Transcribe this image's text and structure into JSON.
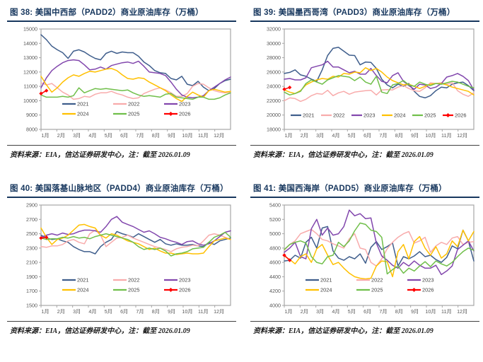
{
  "palette": {
    "2021": "#3F5E8C",
    "2022": "#F8ABAB",
    "2023": "#8247AD",
    "2024": "#FFC000",
    "2025": "#70BF4A",
    "2026": "#FF0000"
  },
  "axis_colors": {
    "frame": "#A6A6A6",
    "tick_text": "#595959",
    "legend_text": "#404040"
  },
  "title_color": "#17375E",
  "chart_data": [
    {
      "id": "figure-38",
      "type": "line",
      "title": "图 38:  美国中西部（PADD2）商业原油库存（万桶）",
      "source": "资料来源：EIA，信达证券研发中心，注：截至 2026.01.09",
      "ylim": [
        8000,
        15000
      ],
      "ytick": 1000,
      "legend_rows": 2,
      "x_labels": [
        "1月",
        "2月",
        "3月",
        "4月",
        "5月",
        "6月",
        "7月",
        "8月",
        "9月",
        "10月",
        "11月",
        "12月"
      ],
      "series": [
        {
          "name": "2021",
          "markers": false,
          "values": [
            14600,
            14250,
            13800,
            13550,
            13350,
            12950,
            13450,
            13550,
            13400,
            13150,
            12950,
            12850,
            13300,
            13450,
            13300,
            13400,
            13350,
            13350,
            13100,
            12700,
            12450,
            12100,
            11950,
            11900,
            11550,
            11450,
            11700,
            11150,
            11050,
            11350,
            10950,
            10700,
            10850,
            11200,
            11400,
            11500
          ]
        },
        {
          "name": "2022",
          "markers": false,
          "values": [
            11250,
            11100,
            11200,
            10900,
            10600,
            10400,
            10100,
            10150,
            10300,
            10250,
            10450,
            10550,
            10550,
            10650,
            10500,
            10400,
            10250,
            10150,
            10200,
            10500,
            10650,
            10800,
            10900,
            10750,
            10550,
            10300,
            10300,
            10500,
            11000,
            11200,
            11150,
            10900,
            10700,
            10600,
            10550,
            10600
          ]
        },
        {
          "name": "2023",
          "markers": false,
          "values": [
            10900,
            11600,
            12100,
            12400,
            12650,
            12800,
            12850,
            12800,
            12500,
            12150,
            12200,
            12350,
            12200,
            12450,
            12550,
            12650,
            12700,
            12600,
            12750,
            12400,
            12000,
            11950,
            11900,
            11750,
            11300,
            10800,
            10400,
            10250,
            10200,
            10250,
            10350,
            10700,
            10950,
            11200,
            11450,
            11650
          ]
        },
        {
          "name": "2024",
          "markers": false,
          "values": [
            11700,
            11100,
            10600,
            10900,
            11300,
            11600,
            11800,
            11700,
            11900,
            12050,
            12000,
            12100,
            12200,
            12250,
            12100,
            11800,
            11550,
            11500,
            11600,
            11550,
            11300,
            11100,
            10900,
            10700,
            10400,
            10150,
            9950,
            10300,
            10600,
            10400,
            10250,
            10700,
            10800,
            10700,
            10600,
            10650
          ]
        },
        {
          "name": "2025",
          "markers": false,
          "values": [
            10400,
            10250,
            10250,
            10250,
            10300,
            10250,
            10350,
            10900,
            10550,
            10700,
            10850,
            10800,
            10850,
            10800,
            10750,
            10700,
            10750,
            10550,
            10400,
            10300,
            10350,
            10300,
            10250,
            10450,
            10500,
            10250,
            10200,
            10150,
            10100,
            10250,
            10250,
            10100,
            10100,
            10200,
            10400,
            10550
          ]
        },
        {
          "name": "2026",
          "markers": true,
          "values": [
            10500,
            10700
          ]
        }
      ]
    },
    {
      "id": "figure-39",
      "type": "line",
      "title": "图 39:  美国墨西哥湾（PADD3）商业原油库存（万桶）",
      "source": "资料来源：EIA，信达证券研发中心，注：截至 2026.01.09",
      "ylim": [
        18000,
        32000
      ],
      "ytick": 2000,
      "legend_rows": 1,
      "x_labels": [
        "1月",
        "2月",
        "3月",
        "4月",
        "5月",
        "6月",
        "7月",
        "8月",
        "9月",
        "10月",
        "11月",
        "12月"
      ],
      "series": [
        {
          "name": "2021",
          "markers": false,
          "values": [
            25800,
            25950,
            26300,
            25600,
            25400,
            25000,
            24700,
            26300,
            28300,
            29300,
            29450,
            28900,
            28350,
            28300,
            27000,
            27400,
            27350,
            26500,
            25000,
            24200,
            23800,
            24300,
            24000,
            24400,
            23300,
            22600,
            22400,
            22700,
            23400,
            23900,
            23800,
            24300,
            24500,
            24600,
            24100,
            23400
          ]
        },
        {
          "name": "2022",
          "markers": false,
          "values": [
            22000,
            22400,
            22300,
            21900,
            22200,
            22700,
            23000,
            22900,
            23450,
            22700,
            23100,
            23300,
            22900,
            23200,
            23300,
            23400,
            23450,
            22800,
            23500,
            23550,
            23500,
            23900,
            24100,
            23700,
            23400,
            23300,
            23800,
            24500,
            24400,
            24500,
            24300,
            24500,
            23400,
            22900,
            22600,
            23100
          ]
        },
        {
          "name": "2023",
          "markers": false,
          "values": [
            25000,
            25100,
            24900,
            24900,
            25200,
            26600,
            26800,
            27000,
            27500,
            26700,
            26700,
            26300,
            25900,
            26100,
            25700,
            25700,
            26500,
            25500,
            24700,
            24500,
            25500,
            25900,
            24700,
            24100,
            23600,
            24300,
            24200,
            23700,
            23900,
            24400,
            25300,
            25500,
            25800,
            25400,
            24800,
            23500
          ]
        },
        {
          "name": "2024",
          "markers": false,
          "values": [
            23500,
            23200,
            23000,
            23400,
            24200,
            24600,
            24900,
            25100,
            25000,
            25400,
            25300,
            25800,
            25700,
            26000,
            25900,
            26600,
            26200,
            26500,
            26000,
            25300,
            24800,
            24500,
            24200,
            24300,
            24000,
            23700,
            24000,
            24300,
            24400,
            24400,
            24200,
            23900,
            23700,
            23500,
            23300,
            22800
          ]
        },
        {
          "name": "2025",
          "markers": false,
          "values": [
            23200,
            22800,
            23000,
            23300,
            24400,
            24900,
            24600,
            24300,
            24900,
            25200,
            25500,
            25400,
            25300,
            24800,
            25300,
            24600,
            24300,
            25400,
            23200,
            23000,
            24200,
            24400,
            24800,
            24200,
            24000,
            24600,
            24300,
            24100,
            24400,
            24300,
            24500,
            24700,
            24600,
            24300,
            24000,
            23800
          ]
        },
        {
          "name": "2026",
          "markers": true,
          "values": [
            23600,
            23850
          ]
        }
      ]
    },
    {
      "id": "figure-40",
      "type": "line",
      "title": "图 40:  美国落基山脉地区（PADD4）商业原油库存（万桶）",
      "source": "资料来源：EIA，信达证券研发中心，注：截至 2026.01.09",
      "ylim": [
        1500,
        2900
      ],
      "ytick": 200,
      "legend_rows": 2,
      "x_labels": [
        "1月",
        "2月",
        "3月",
        "4月",
        "5月",
        "6月",
        "7月",
        "8月",
        "9月",
        "10月",
        "11月",
        "12月"
      ],
      "series": [
        {
          "name": "2021",
          "markers": false,
          "values": [
            2480,
            2440,
            2420,
            2430,
            2400,
            2380,
            2320,
            2280,
            2250,
            2250,
            2220,
            2320,
            2380,
            2420,
            2530,
            2500,
            2480,
            2450,
            2500,
            2460,
            2420,
            2380,
            2420,
            2360,
            2340,
            2360,
            2340,
            2340,
            2350,
            2330,
            2320,
            2380,
            2350,
            2400,
            2420,
            2440
          ]
        },
        {
          "name": "2022",
          "markers": false,
          "values": [
            2320,
            2310,
            2330,
            2330,
            2350,
            2400,
            2420,
            2380,
            2360,
            2500,
            2550,
            2480,
            2320,
            2380,
            2440,
            2450,
            2480,
            2440,
            2410,
            2380,
            2350,
            2320,
            2300,
            2280,
            2250,
            2290,
            2310,
            2320,
            2340,
            2330,
            2400,
            2480,
            2500,
            2480,
            2450,
            2420
          ]
        },
        {
          "name": "2023",
          "markers": false,
          "values": [
            2450,
            2480,
            2500,
            2480,
            2510,
            2490,
            2500,
            2530,
            2550,
            2550,
            2540,
            2520,
            2600,
            2700,
            2740,
            2660,
            2630,
            2600,
            2560,
            2520,
            2540,
            2500,
            2450,
            2430,
            2400,
            2380,
            2350,
            2390,
            2400,
            2360,
            2340,
            2360,
            2400,
            2460,
            2520,
            2540
          ]
        },
        {
          "name": "2024",
          "markers": false,
          "values": [
            2580,
            2450,
            2350,
            2420,
            2440,
            2480,
            2550,
            2620,
            2630,
            2600,
            2580,
            2480,
            2440,
            2500,
            2480,
            2440,
            2400,
            2380,
            2360,
            2320,
            2280,
            2300,
            2260,
            2230,
            2230,
            2210,
            2220,
            2230,
            2220,
            2220,
            2230,
            2320,
            2400,
            2420,
            2440,
            2420
          ]
        },
        {
          "name": "2025",
          "markers": false,
          "values": [
            2440,
            2420,
            2430,
            2430,
            2450,
            2440,
            2460,
            2440,
            2450,
            2430,
            2460,
            2480,
            2500,
            2480,
            2460,
            2440,
            2420,
            2380,
            2320,
            2280,
            2300,
            2280,
            2300,
            2260,
            2190,
            2220,
            2230,
            2250,
            2290,
            2300,
            2310,
            2380,
            2450,
            2480,
            2520,
            2450
          ]
        },
        {
          "name": "2026",
          "markers": true,
          "values": [
            2440,
            2450
          ]
        }
      ]
    },
    {
      "id": "figure-41",
      "type": "line",
      "title": "图 41:  美国西海岸（PADD5）商业原油库存（万桶）",
      "source": "资料来源：EIA，信达证券研发中心，注：截至 2026.01.09",
      "ylim": [
        4000,
        5400
      ],
      "ytick": 200,
      "legend_rows": 2,
      "x_labels": [
        "1月",
        "2月",
        "3月",
        "4月",
        "5月",
        "6月",
        "7月",
        "8月",
        "9月",
        "10月",
        "11月",
        "12月"
      ],
      "series": [
        {
          "name": "2021",
          "markers": false,
          "values": [
            4620,
            4630,
            4700,
            4660,
            4880,
            4950,
            4800,
            5080,
            5100,
            4760,
            4660,
            4630,
            4680,
            4650,
            4720,
            4590,
            4810,
            4890,
            4780,
            4820,
            4870,
            4550,
            4680,
            4650,
            4690,
            4750,
            4680,
            4700,
            4640,
            4600,
            4670,
            4830,
            4790,
            5050,
            4900,
            4620
          ]
        },
        {
          "name": "2022",
          "markers": false,
          "values": [
            4770,
            4850,
            4900,
            5000,
            5030,
            5060,
            5000,
            4920,
            4900,
            4860,
            4830,
            4800,
            4930,
            5000,
            4800,
            4780,
            4600,
            4550,
            4650,
            4790,
            4880,
            4950,
            5000,
            5030,
            4870,
            4900,
            4950,
            4740,
            4830,
            4880,
            4850,
            4940,
            4960,
            4850,
            4880,
            4890
          ]
        },
        {
          "name": "2023",
          "markers": false,
          "values": [
            4740,
            4800,
            4880,
            4680,
            4650,
            5070,
            5200,
            4980,
            5080,
            4980,
            5000,
            5100,
            5330,
            5250,
            5280,
            5210,
            5220,
            4870,
            4690,
            4630,
            4560,
            4520,
            4600,
            4550,
            4620,
            4560,
            4520,
            4520,
            4560,
            4430,
            4480,
            4550,
            4780,
            4840,
            4900,
            4760
          ]
        },
        {
          "name": "2024",
          "markers": false,
          "values": [
            4690,
            4640,
            4580,
            4680,
            4720,
            4600,
            4790,
            4850,
            4700,
            4570,
            4600,
            4520,
            4450,
            4400,
            4380,
            4370,
            4380,
            4550,
            4620,
            4610,
            4400,
            4750,
            4850,
            4650,
            4890,
            4960,
            4800,
            4700,
            4820,
            4660,
            4720,
            4900,
            4820,
            5050,
            4900,
            5030
          ]
        },
        {
          "name": "2025",
          "markers": false,
          "values": [
            4780,
            4850,
            4880,
            4900,
            4870,
            4680,
            4600,
            4580,
            4680,
            4700,
            4880,
            4820,
            4900,
            5040,
            5150,
            5130,
            5050,
            5030,
            4950,
            4440,
            4500,
            4550,
            4450,
            4520,
            4480,
            4550,
            4610,
            4540,
            4620,
            4580,
            4550,
            4600,
            4680,
            4750,
            4800,
            4770
          ]
        },
        {
          "name": "2026",
          "markers": true,
          "values": [
            4700,
            4630
          ]
        }
      ]
    }
  ]
}
